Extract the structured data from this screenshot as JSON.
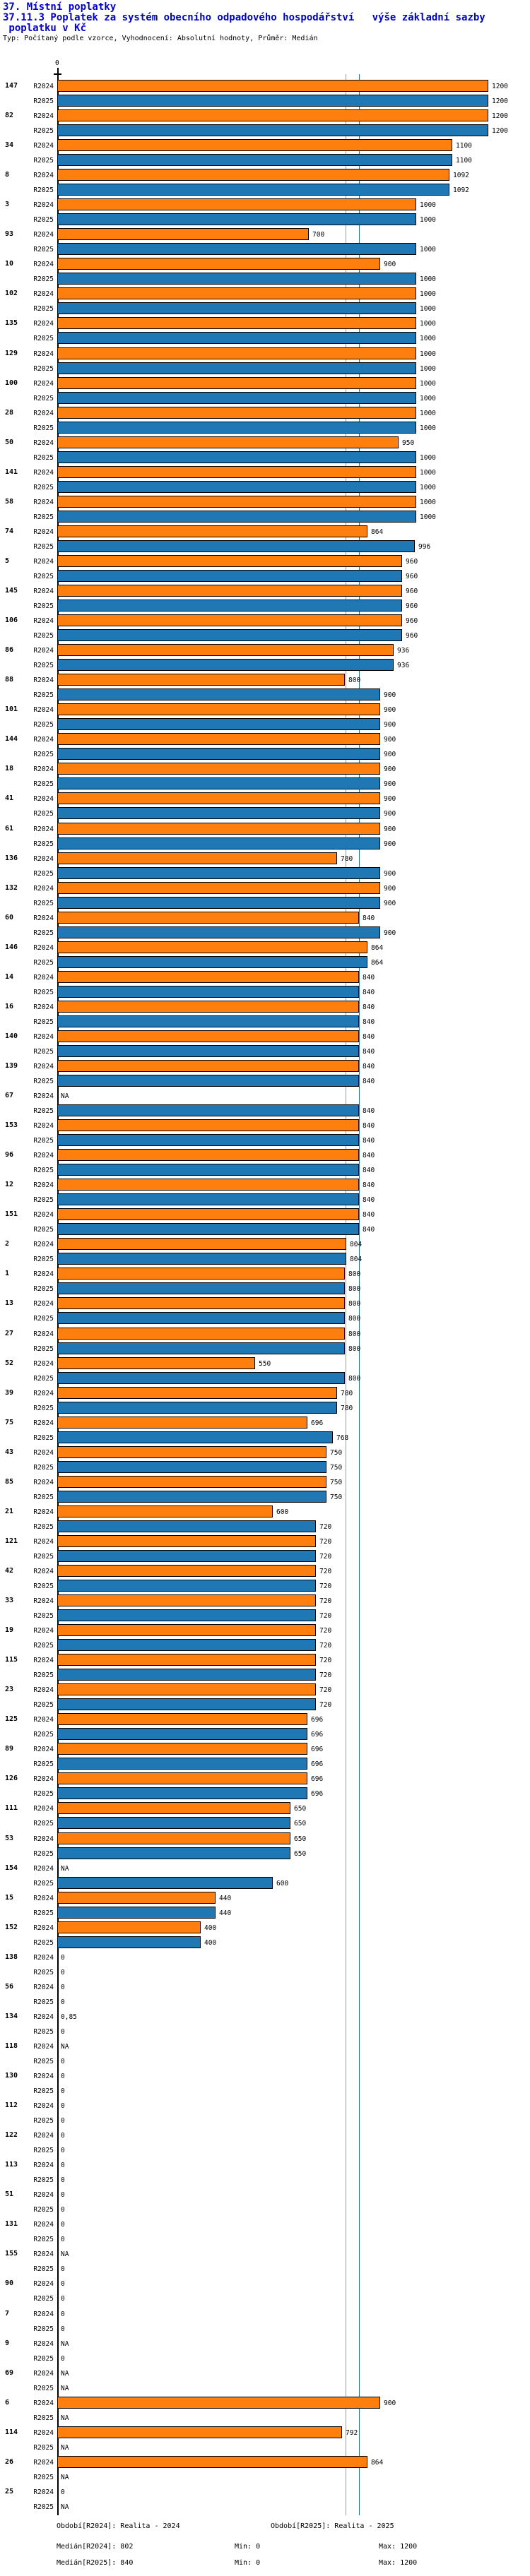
{
  "header": {
    "title1": "37. Místní poplatky",
    "title2_line1": "37.11.3 Poplatek za systém obecního odpadového hospodářství   výše základní sazby",
    "title2_line2": " poplatku v Kč",
    "subtitle": "Typ: Počítaný podle vzorce, Vyhodnocení: Absolutní hodnoty, Průměr: Medián",
    "title_color": "#0000CC"
  },
  "axis": {
    "zero_label": "0"
  },
  "colors": {
    "r2024_bar": "#FF7F0E",
    "r2025_bar": "#1F77B4",
    "median_r2024_line": "#FF7F0E",
    "median_r2025_line": "#1F77B4"
  },
  "chart_data": {
    "type": "bar",
    "orientation": "horizontal",
    "title": "37.11.3 Poplatek za systém obecního odpadového hospodářství - výše základní sazby poplatku v Kč",
    "xlabel": "Kč",
    "xlim": [
      0,
      1200
    ],
    "series_names": [
      "R2024",
      "R2025"
    ],
    "row_label_r2024": "R2024",
    "row_label_r2025": "R2025",
    "medians": {
      "r2024": 802,
      "r2025": 840
    },
    "groups": [
      {
        "id": "147",
        "v2024": "1200",
        "v2025": "1200"
      },
      {
        "id": "82",
        "v2024": "1200",
        "v2025": "1200"
      },
      {
        "id": "34",
        "v2024": "1100",
        "v2025": "1100"
      },
      {
        "id": "8",
        "v2024": "1092",
        "v2025": "1092"
      },
      {
        "id": "3",
        "v2024": "1000",
        "v2025": "1000"
      },
      {
        "id": "93",
        "v2024": "700",
        "v2025": "1000"
      },
      {
        "id": "10",
        "v2024": "900",
        "v2025": "1000"
      },
      {
        "id": "102",
        "v2024": "1000",
        "v2025": "1000"
      },
      {
        "id": "135",
        "v2024": "1000",
        "v2025": "1000"
      },
      {
        "id": "129",
        "v2024": "1000",
        "v2025": "1000"
      },
      {
        "id": "100",
        "v2024": "1000",
        "v2025": "1000"
      },
      {
        "id": "28",
        "v2024": "1000",
        "v2025": "1000"
      },
      {
        "id": "50",
        "v2024": "950",
        "v2025": "1000"
      },
      {
        "id": "141",
        "v2024": "1000",
        "v2025": "1000"
      },
      {
        "id": "58",
        "v2024": "1000",
        "v2025": "1000"
      },
      {
        "id": "74",
        "v2024": "864",
        "v2025": "996"
      },
      {
        "id": "5",
        "v2024": "960",
        "v2025": "960"
      },
      {
        "id": "145",
        "v2024": "960",
        "v2025": "960"
      },
      {
        "id": "106",
        "v2024": "960",
        "v2025": "960"
      },
      {
        "id": "86",
        "v2024": "936",
        "v2025": "936"
      },
      {
        "id": "88",
        "v2024": "800",
        "v2025": "900"
      },
      {
        "id": "101",
        "v2024": "900",
        "v2025": "900"
      },
      {
        "id": "144",
        "v2024": "900",
        "v2025": "900"
      },
      {
        "id": "18",
        "v2024": "900",
        "v2025": "900"
      },
      {
        "id": "41",
        "v2024": "900",
        "v2025": "900"
      },
      {
        "id": "61",
        "v2024": "900",
        "v2025": "900"
      },
      {
        "id": "136",
        "v2024": "780",
        "v2025": "900"
      },
      {
        "id": "132",
        "v2024": "900",
        "v2025": "900"
      },
      {
        "id": "60",
        "v2024": "840",
        "v2025": "900"
      },
      {
        "id": "146",
        "v2024": "864",
        "v2025": "864"
      },
      {
        "id": "14",
        "v2024": "840",
        "v2025": "840"
      },
      {
        "id": "16",
        "v2024": "840",
        "v2025": "840"
      },
      {
        "id": "140",
        "v2024": "840",
        "v2025": "840"
      },
      {
        "id": "139",
        "v2024": "840",
        "v2025": "840"
      },
      {
        "id": "67",
        "v2024": "NA",
        "v2025": "840"
      },
      {
        "id": "153",
        "v2024": "840",
        "v2025": "840"
      },
      {
        "id": "96",
        "v2024": "840",
        "v2025": "840"
      },
      {
        "id": "12",
        "v2024": "840",
        "v2025": "840"
      },
      {
        "id": "151",
        "v2024": "840",
        "v2025": "840"
      },
      {
        "id": "2",
        "v2024": "804",
        "v2025": "804"
      },
      {
        "id": "1",
        "v2024": "800",
        "v2025": "800"
      },
      {
        "id": "13",
        "v2024": "800",
        "v2025": "800"
      },
      {
        "id": "27",
        "v2024": "800",
        "v2025": "800"
      },
      {
        "id": "52",
        "v2024": "550",
        "v2025": "800"
      },
      {
        "id": "39",
        "v2024": "780",
        "v2025": "780"
      },
      {
        "id": "75",
        "v2024": "696",
        "v2025": "768"
      },
      {
        "id": "43",
        "v2024": "750",
        "v2025": "750"
      },
      {
        "id": "85",
        "v2024": "750",
        "v2025": "750"
      },
      {
        "id": "21",
        "v2024": "600",
        "v2025": "720"
      },
      {
        "id": "121",
        "v2024": "720",
        "v2025": "720"
      },
      {
        "id": "42",
        "v2024": "720",
        "v2025": "720"
      },
      {
        "id": "33",
        "v2024": "720",
        "v2025": "720"
      },
      {
        "id": "19",
        "v2024": "720",
        "v2025": "720"
      },
      {
        "id": "115",
        "v2024": "720",
        "v2025": "720"
      },
      {
        "id": "23",
        "v2024": "720",
        "v2025": "720"
      },
      {
        "id": "125",
        "v2024": "696",
        "v2025": "696"
      },
      {
        "id": "89",
        "v2024": "696",
        "v2025": "696"
      },
      {
        "id": "126",
        "v2024": "696",
        "v2025": "696"
      },
      {
        "id": "111",
        "v2024": "650",
        "v2025": "650"
      },
      {
        "id": "53",
        "v2024": "650",
        "v2025": "650"
      },
      {
        "id": "154",
        "v2024": "NA",
        "v2025": "600"
      },
      {
        "id": "15",
        "v2024": "440",
        "v2025": "440"
      },
      {
        "id": "152",
        "v2024": "400",
        "v2025": "400"
      },
      {
        "id": "138",
        "v2024": "0",
        "v2025": "0"
      },
      {
        "id": "56",
        "v2024": "0",
        "v2025": "0"
      },
      {
        "id": "134",
        "v2024": "0,85",
        "v2025": "0"
      },
      {
        "id": "118",
        "v2024": "NA",
        "v2025": "0"
      },
      {
        "id": "130",
        "v2024": "0",
        "v2025": "0"
      },
      {
        "id": "112",
        "v2024": "0",
        "v2025": "0"
      },
      {
        "id": "122",
        "v2024": "0",
        "v2025": "0"
      },
      {
        "id": "113",
        "v2024": "0",
        "v2025": "0"
      },
      {
        "id": "51",
        "v2024": "0",
        "v2025": "0"
      },
      {
        "id": "131",
        "v2024": "0",
        "v2025": "0"
      },
      {
        "id": "155",
        "v2024": "NA",
        "v2025": "0"
      },
      {
        "id": "90",
        "v2024": "0",
        "v2025": "0"
      },
      {
        "id": "7",
        "v2024": "0",
        "v2025": "0"
      },
      {
        "id": "9",
        "v2024": "NA",
        "v2025": "0"
      },
      {
        "id": "69",
        "v2024": "NA",
        "v2025": "NA"
      },
      {
        "id": "6",
        "v2024": "900",
        "v2025": "NA"
      },
      {
        "id": "114",
        "v2024": "792",
        "v2025": "NA"
      },
      {
        "id": "26",
        "v2024": "864",
        "v2025": "NA"
      },
      {
        "id": "25",
        "v2024": "0",
        "v2025": "NA"
      }
    ]
  },
  "legend": {
    "obdobi_r2024": "Období[R2024]: Realita - 2024",
    "obdobi_r2025": "Období[R2025]: Realita - 2025",
    "median_r2024": "Medián[R2024]: 802",
    "median_r2025": "Medián[R2025]: 840",
    "min_r2024": "Min: 0",
    "max_r2024": "Max: 1200",
    "min_r2025": "Min: 0",
    "max_r2025": "Max: 1200"
  }
}
